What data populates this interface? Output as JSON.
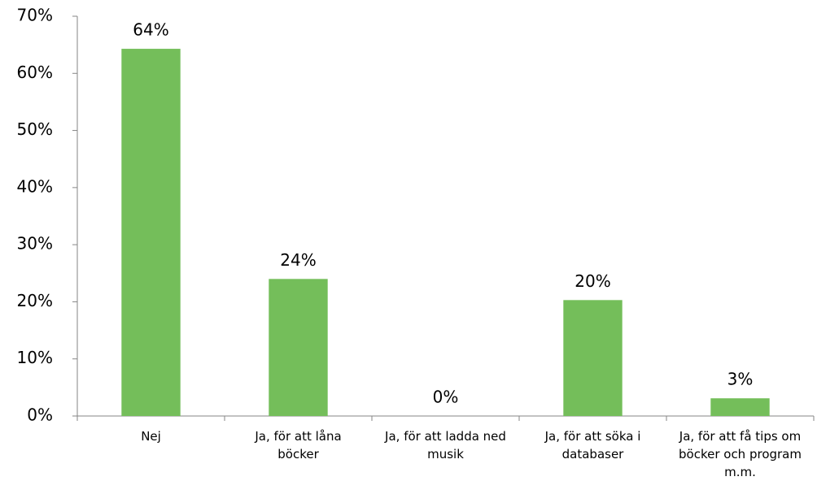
{
  "chart_data": {
    "type": "bar",
    "categories": [
      "Nej",
      "Ja, för att låna böcker",
      "Ja, för att ladda ned musik",
      "Ja, för att söka i databaser",
      "Ja, för att få tips om böcker och program m.m."
    ],
    "values": [
      64.3,
      24.0,
      0,
      20.3,
      3.1
    ],
    "value_labels": [
      "64%",
      "24%",
      "0%",
      "20%",
      "3%"
    ],
    "color": "#74be5a",
    "ylim": [
      0,
      70
    ],
    "yticks": [
      {
        "value": 0,
        "label": "0%"
      },
      {
        "value": 10,
        "label": "10%"
      },
      {
        "value": 20,
        "label": "20%"
      },
      {
        "value": 30,
        "label": "30%"
      },
      {
        "value": 40,
        "label": "40%"
      },
      {
        "value": 50,
        "label": "50%"
      },
      {
        "value": 60,
        "label": "60%"
      },
      {
        "value": 70,
        "label": "70%"
      }
    ],
    "grid": false
  }
}
